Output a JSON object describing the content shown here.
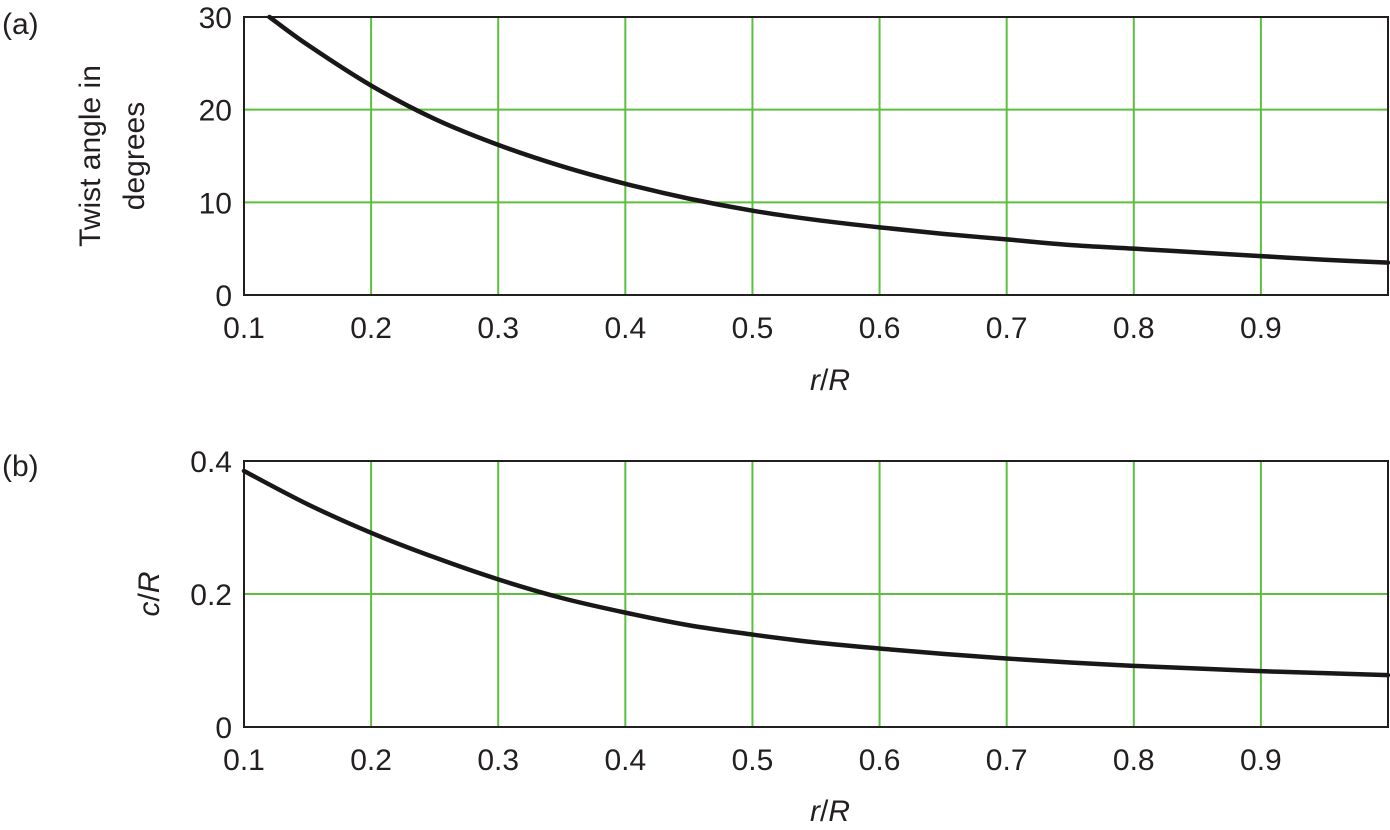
{
  "chart_data": [
    {
      "type": "line",
      "panel_label": "(a)",
      "xlabel": "r/R",
      "ylabel_lines": [
        "Twist angle in",
        "degrees"
      ],
      "xlim": [
        0.1,
        1.0
      ],
      "ylim": [
        0,
        30
      ],
      "x_ticks": [
        0.1,
        0.2,
        0.3,
        0.4,
        0.5,
        0.6,
        0.7,
        0.8,
        0.9
      ],
      "x_tick_labels": [
        "0.1",
        "0.2",
        "0.3",
        "0.4",
        "0.5",
        "0.6",
        "0.7",
        "0.8",
        "0.9"
      ],
      "y_ticks": [
        0,
        10,
        20,
        30
      ],
      "y_tick_labels": [
        "0",
        "10",
        "20",
        "30"
      ],
      "grid": true,
      "grid_color": "#5cbf3f",
      "line_color": "#1a1718",
      "series": [
        {
          "x": [
            0.12,
            0.15,
            0.2,
            0.25,
            0.3,
            0.35,
            0.4,
            0.45,
            0.5,
            0.55,
            0.6,
            0.65,
            0.7,
            0.75,
            0.8,
            0.85,
            0.9,
            0.95,
            1.0
          ],
          "y": [
            30.0,
            27.0,
            22.6,
            19.0,
            16.2,
            13.9,
            12.0,
            10.4,
            9.1,
            8.1,
            7.3,
            6.6,
            6.0,
            5.4,
            5.0,
            4.6,
            4.2,
            3.8,
            3.5
          ]
        }
      ]
    },
    {
      "type": "line",
      "panel_label": "(b)",
      "xlabel": "r/R",
      "ylabel_lines": [
        "c/R"
      ],
      "xlim": [
        0.1,
        1.0
      ],
      "ylim": [
        0,
        0.4
      ],
      "x_ticks": [
        0.1,
        0.2,
        0.3,
        0.4,
        0.5,
        0.6,
        0.7,
        0.8,
        0.9
      ],
      "x_tick_labels": [
        "0.1",
        "0.2",
        "0.3",
        "0.4",
        "0.5",
        "0.6",
        "0.7",
        "0.8",
        "0.9"
      ],
      "y_ticks": [
        0,
        0.2,
        0.4
      ],
      "y_tick_labels": [
        "0",
        "0.2",
        "0.4"
      ],
      "grid": true,
      "grid_color": "#5cbf3f",
      "line_color": "#1a1718",
      "series": [
        {
          "x": [
            0.1,
            0.15,
            0.2,
            0.25,
            0.3,
            0.35,
            0.4,
            0.45,
            0.5,
            0.55,
            0.6,
            0.65,
            0.7,
            0.75,
            0.8,
            0.85,
            0.9,
            0.95,
            1.0
          ],
          "y": [
            0.385,
            0.335,
            0.292,
            0.255,
            0.222,
            0.194,
            0.172,
            0.153,
            0.139,
            0.127,
            0.118,
            0.11,
            0.103,
            0.097,
            0.092,
            0.088,
            0.084,
            0.081,
            0.078
          ]
        }
      ]
    }
  ]
}
